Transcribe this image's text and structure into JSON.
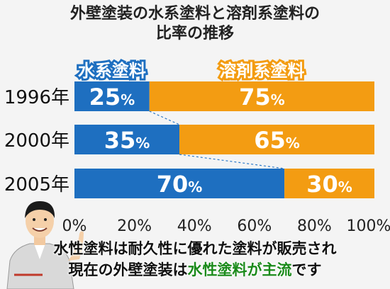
{
  "title_line1": "外壁塗装の水系塗料と溶剤系塗料の",
  "title_line2": "比率の推移",
  "caption": {
    "line1": "水性塗料は耐久性に優れた塗料が販売され",
    "line2_pre": "現在の外壁塗装は",
    "line2_highlight": "水性塗料が主流",
    "line2_post": "です"
  },
  "colors": {
    "water": "#1e6fc0",
    "solvent": "#f39c12",
    "highlight": "#1a8a1a"
  },
  "chart_data": {
    "type": "bar",
    "orientation": "horizontal",
    "stacked": true,
    "categories": [
      "1996年",
      "2000年",
      "2005年"
    ],
    "series": [
      {
        "name": "水系塗料",
        "values": [
          25,
          35,
          70
        ]
      },
      {
        "name": "溶剤系塗料",
        "values": [
          75,
          65,
          30
        ]
      }
    ],
    "value_suffix": "%",
    "xlim": [
      0,
      100
    ],
    "xticks": [
      "0%",
      "20%",
      "40%",
      "60%",
      "80%",
      "100%"
    ],
    "legend": "inside-top"
  }
}
